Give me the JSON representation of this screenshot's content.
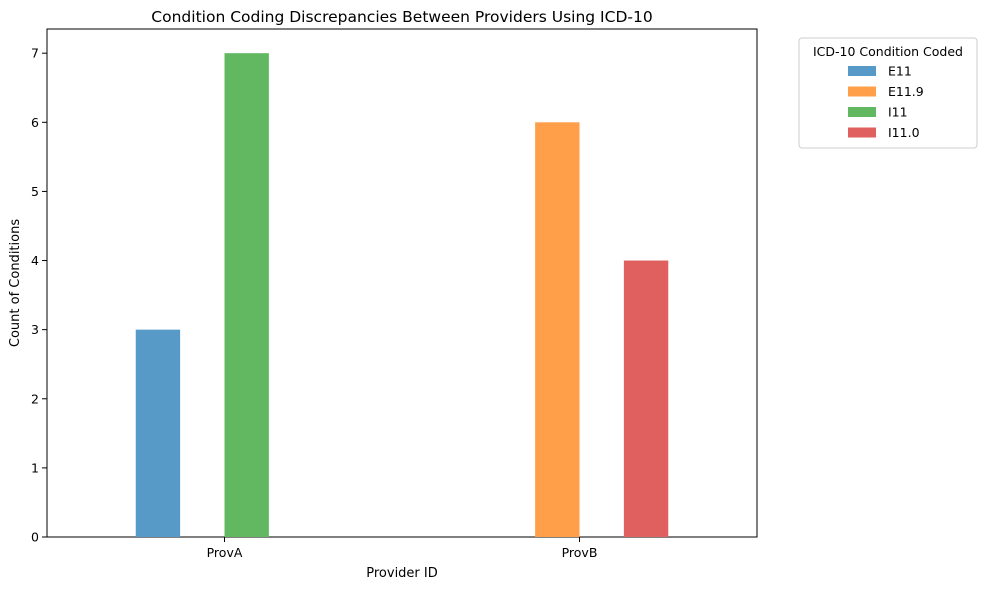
{
  "chart_data": {
    "type": "bar",
    "title": "Condition Coding Discrepancies Between Providers Using ICD-10",
    "xlabel": "Provider ID",
    "ylabel": "Count of Conditions",
    "categories": [
      "ProvA",
      "ProvB"
    ],
    "ylim": [
      0,
      7.35
    ],
    "yticks": [
      0,
      1,
      2,
      3,
      4,
      5,
      6,
      7
    ],
    "legend": {
      "title": "ICD-10 Condition Coded",
      "position": "outside-top-right"
    },
    "series": [
      {
        "name": "E11",
        "color": "#5799c7",
        "values": [
          3,
          0
        ]
      },
      {
        "name": "E11.9",
        "color": "#ff9f4a",
        "values": [
          0,
          6
        ]
      },
      {
        "name": "I11",
        "color": "#61b861",
        "values": [
          7,
          0
        ]
      },
      {
        "name": "I11.0",
        "color": "#e05f5f",
        "values": [
          0,
          4
        ]
      }
    ],
    "grid": false
  }
}
